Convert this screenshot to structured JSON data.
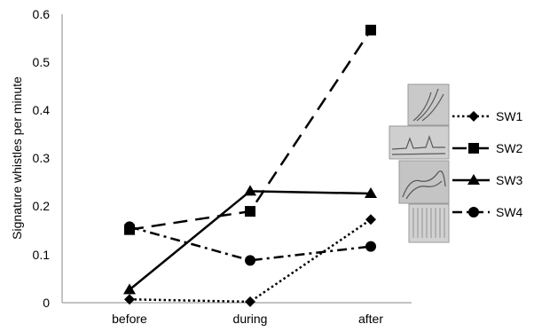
{
  "chart_data": {
    "type": "line",
    "ylabel": "Signature whistles per minute",
    "xlabel": "",
    "categories": [
      "before",
      "during",
      "after"
    ],
    "ylim": [
      0,
      0.6
    ],
    "yticks": [
      "0",
      "0.1",
      "0.2",
      "0.3",
      "0.4",
      "0.5",
      "0.6"
    ],
    "grid": false,
    "legend_position": "right",
    "series": [
      {
        "name": "SW1",
        "values": [
          0.007,
          0.002,
          0.173
        ],
        "marker": "diamond",
        "dash": "dotted"
      },
      {
        "name": "SW2",
        "values": [
          0.152,
          0.19,
          0.567
        ],
        "marker": "square",
        "dash": "long-dash"
      },
      {
        "name": "SW3",
        "values": [
          0.027,
          0.232,
          0.227
        ],
        "marker": "triangle",
        "dash": "solid"
      },
      {
        "name": "SW4",
        "values": [
          0.158,
          0.088,
          0.117
        ],
        "marker": "circle",
        "dash": "dash-dot"
      }
    ]
  }
}
